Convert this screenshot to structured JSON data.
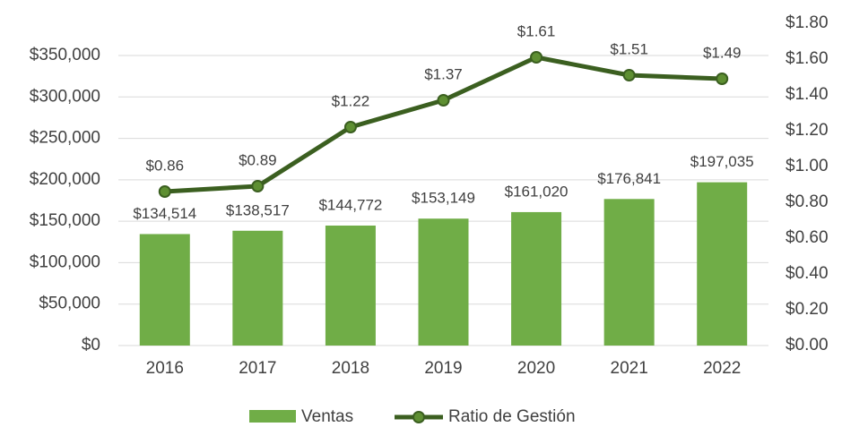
{
  "chart_data": {
    "type": "bar-line",
    "categories": [
      "2016",
      "2017",
      "2018",
      "2019",
      "2020",
      "2021",
      "2022"
    ],
    "series": [
      {
        "name": "Ventas",
        "type": "bar",
        "axis": "y",
        "color": "#70ad47",
        "values": [
          134514,
          138517,
          144772,
          153149,
          161020,
          176841,
          197035
        ],
        "value_labels": [
          "$134,514",
          "$138,517",
          "$144,772",
          "$153,149",
          "$161,020",
          "$176,841",
          "$197,035"
        ]
      },
      {
        "name": "Ratio de Gestión",
        "type": "line",
        "axis": "y2",
        "color": "#3b5f20",
        "marker_color": "#5e8f32",
        "values": [
          0.86,
          0.89,
          1.22,
          1.37,
          1.61,
          1.51,
          1.49
        ],
        "value_labels": [
          "$0.86",
          "$0.89",
          "$1.22",
          "$1.37",
          "$1.61",
          "$1.51",
          "$1.49"
        ]
      }
    ],
    "ylim": [
      0,
      388889
    ],
    "yticks": [
      {
        "value": 0,
        "label": "$0"
      },
      {
        "value": 50000,
        "label": "$50,000"
      },
      {
        "value": 100000,
        "label": "$100,000"
      },
      {
        "value": 150000,
        "label": "$150,000"
      },
      {
        "value": 200000,
        "label": "$200,000"
      },
      {
        "value": 250000,
        "label": "$250,000"
      },
      {
        "value": 300000,
        "label": "$300,000"
      },
      {
        "value": 350000,
        "label": "$350,000"
      }
    ],
    "y2lim": [
      0,
      1.8
    ],
    "y2ticks": [
      {
        "value": 0,
        "label": "$0.00"
      },
      {
        "value": 0.2,
        "label": "$0.20"
      },
      {
        "value": 0.4,
        "label": "$0.40"
      },
      {
        "value": 0.6,
        "label": "$0.60"
      },
      {
        "value": 0.8,
        "label": "$0.80"
      },
      {
        "value": 1.0,
        "label": "$1.00"
      },
      {
        "value": 1.2,
        "label": "$1.20"
      },
      {
        "value": 1.4,
        "label": "$1.40"
      },
      {
        "value": 1.6,
        "label": "$1.60"
      },
      {
        "value": 1.8,
        "label": "$1.80"
      }
    ],
    "grid": true,
    "legend": "bottom"
  }
}
